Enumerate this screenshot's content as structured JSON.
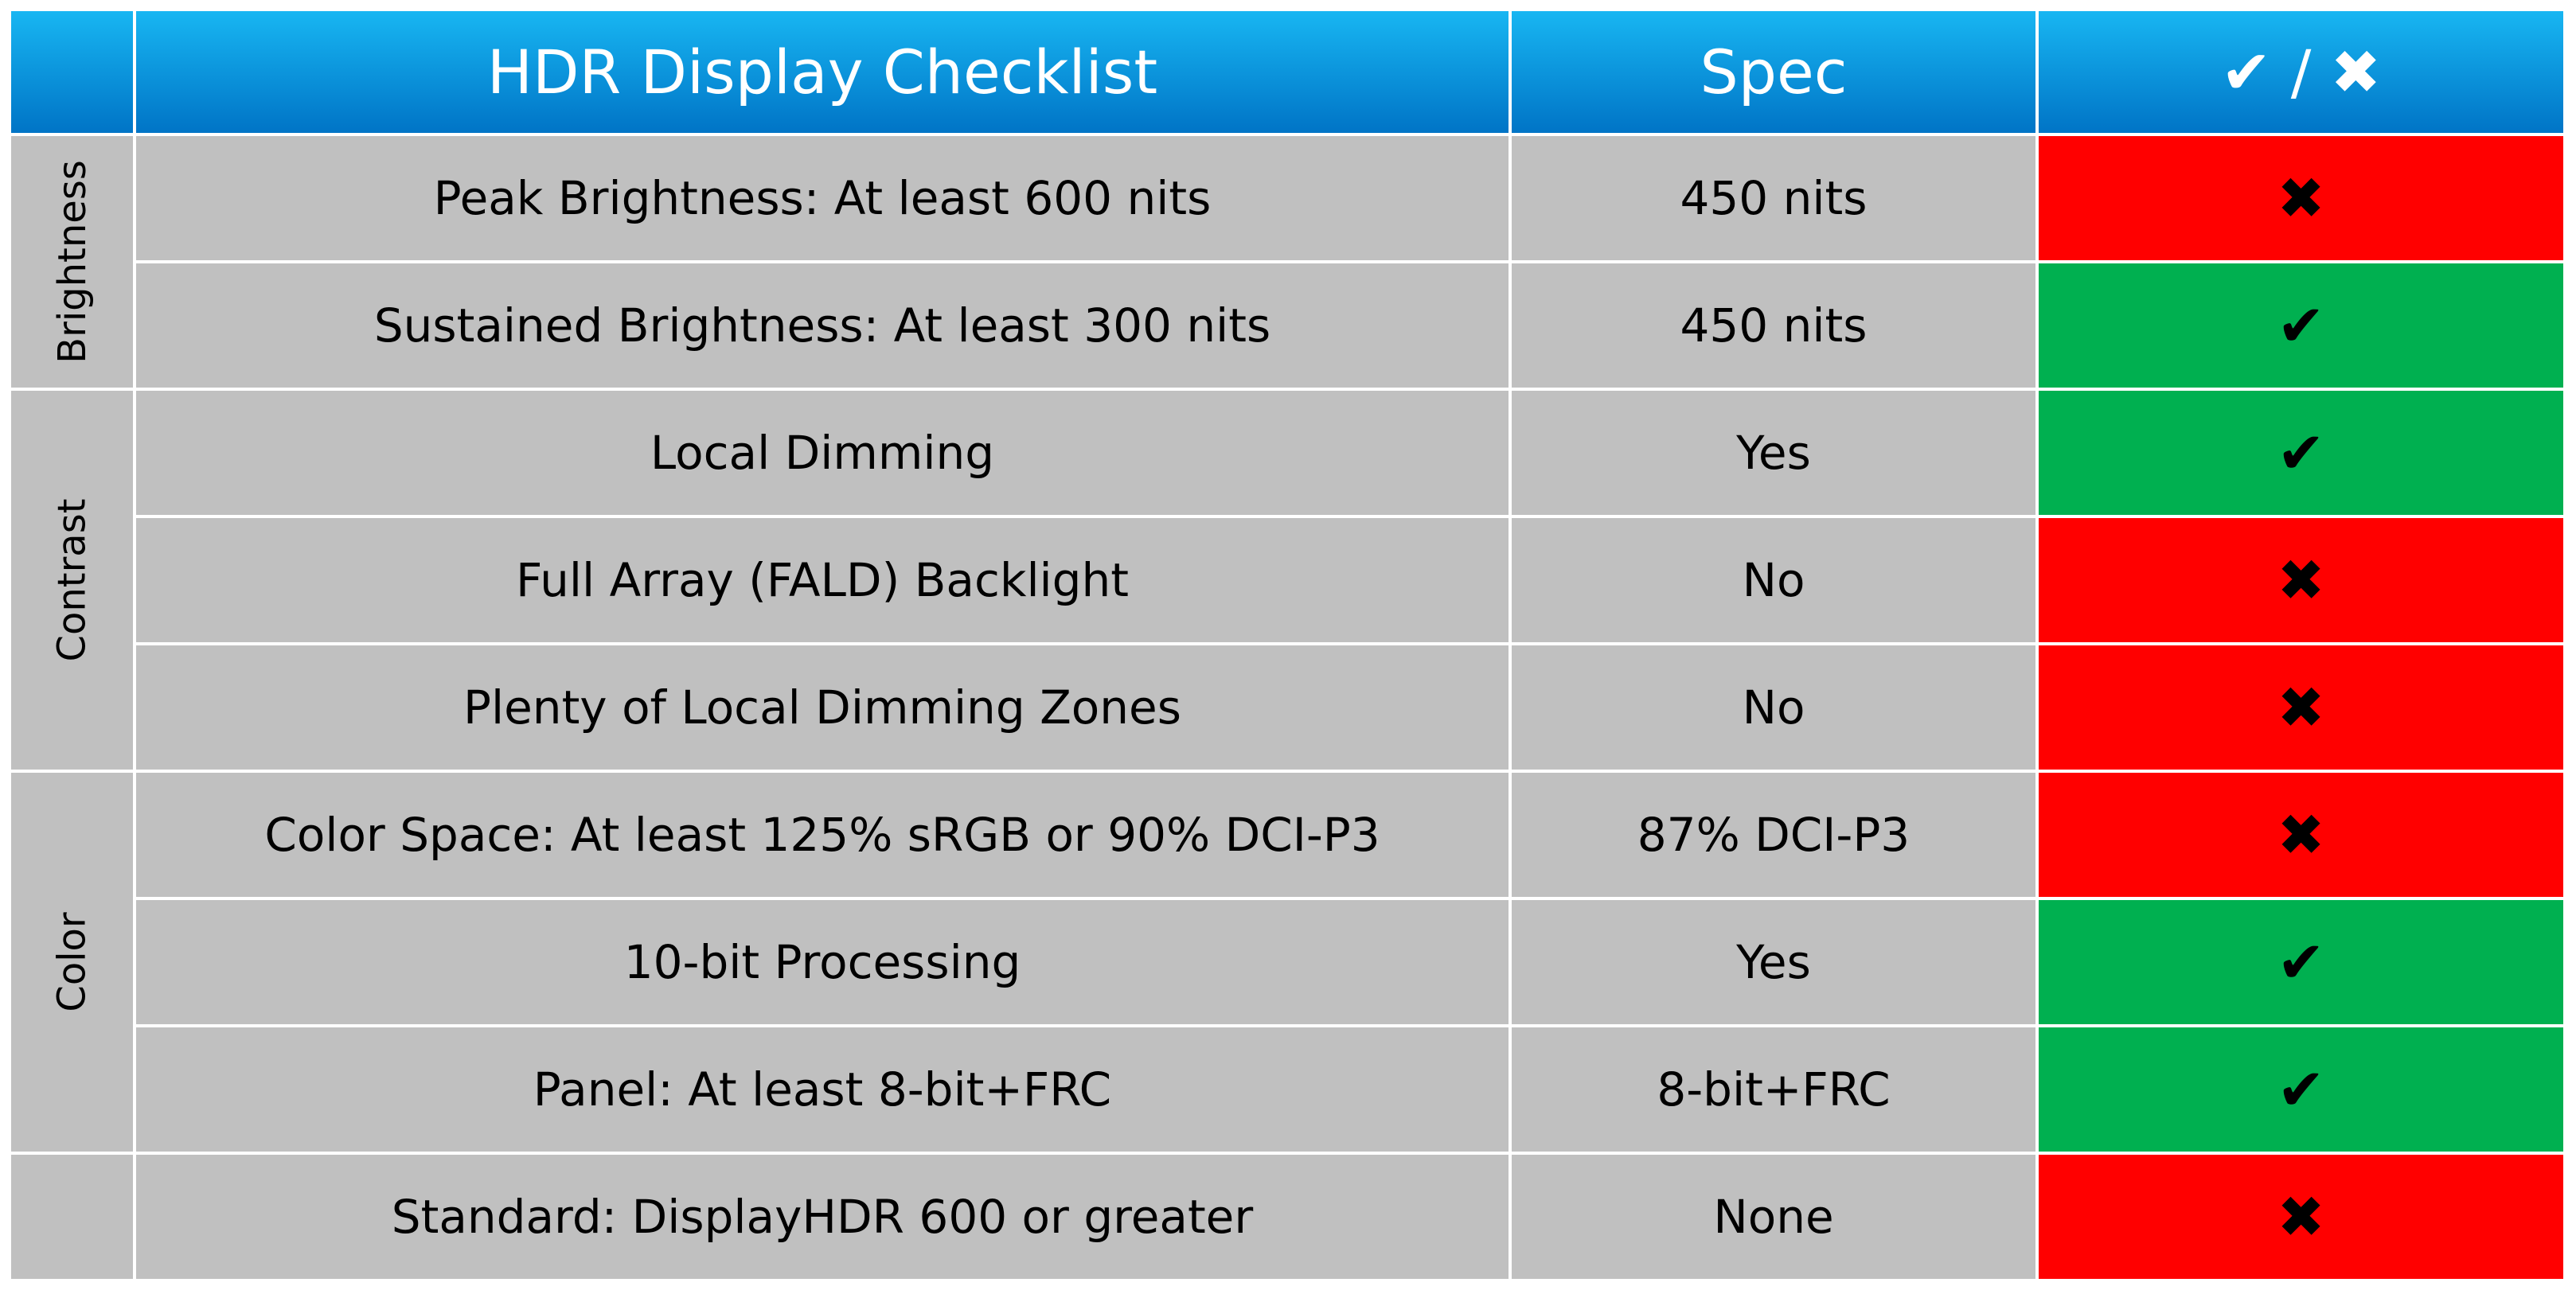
{
  "header": {
    "title": "HDR Display Checklist",
    "spec": "Spec",
    "result": "✔ / ✖"
  },
  "groups": [
    {
      "label": "Brightness",
      "rows": [
        {
          "feature": "Peak Brightness: At least 600 nits",
          "spec": "450 nits",
          "result": "✖",
          "color": "#ff0000"
        },
        {
          "feature": "Sustained Brightness: At least 300 nits",
          "spec": "450 nits",
          "result": "✔",
          "color": "#00b050"
        }
      ]
    },
    {
      "label": "Contrast",
      "rows": [
        {
          "feature": "Local Dimming",
          "spec": "Yes",
          "result": "✔",
          "color": "#00b050"
        },
        {
          "feature": "Full Array (FALD) Backlight",
          "spec": "No",
          "result": "✖",
          "color": "#ff0000"
        },
        {
          "feature": "Plenty of Local Dimming Zones",
          "spec": "No",
          "result": "✖",
          "color": "#ff0000"
        }
      ]
    },
    {
      "label": "Color",
      "rows": [
        {
          "feature": "Color Space: At least 125% sRGB or 90% DCI-P3",
          "spec": "87% DCI-P3",
          "result": "✖",
          "color": "#ff0000"
        },
        {
          "feature": "10-bit Processing",
          "spec": "Yes",
          "result": "✔",
          "color": "#00b050"
        },
        {
          "feature": "Panel: At least 8-bit+FRC",
          "spec": "8-bit+FRC",
          "result": "✔",
          "color": "#00b050"
        }
      ]
    },
    {
      "rows": [
        {
          "feature": "Standard: DisplayHDR 600 or greater",
          "spec": "None",
          "result": "✖",
          "color": "#ff0000"
        }
      ]
    }
  ]
}
